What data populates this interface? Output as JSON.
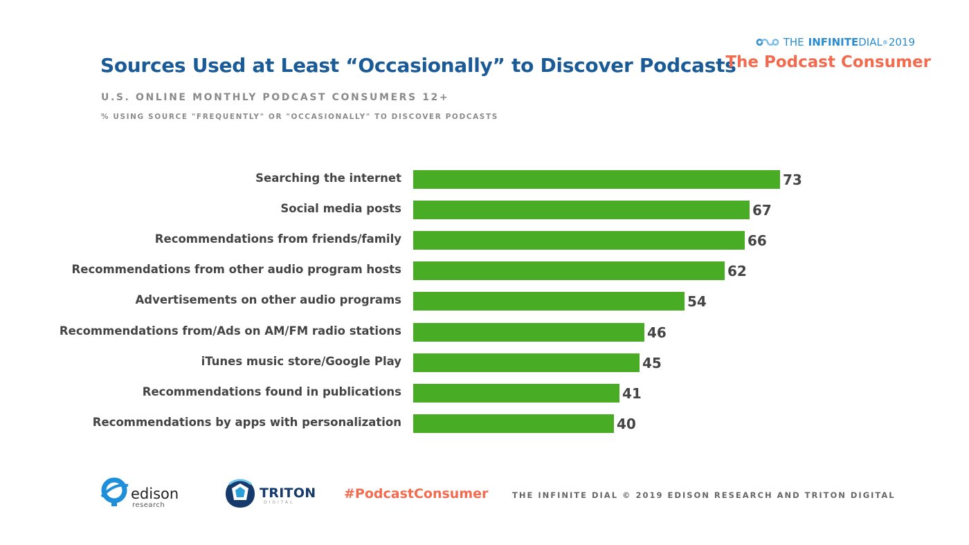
{
  "header": {
    "title": "Sources Used at Least “Occasionally” to Discover Podcasts",
    "subtitle": "U.S. ONLINE MONTHLY PODCAST CONSUMERS 12+",
    "note": "% USING SOURCE \"FREQUENTLY\" OR \"OCCASIONALLY\" TO DISCOVER PODCASTS"
  },
  "brand": {
    "prefix": "THE ",
    "name_bold": "INFINITE",
    "name_rest": " DIAL",
    "reg": "®",
    "year": "2019",
    "subtitle": "The Podcast Consumer",
    "infinity_icon": "infinity-icon"
  },
  "chart_data": {
    "type": "bar",
    "orientation": "horizontal",
    "categories": [
      "Searching the internet",
      "Social media posts",
      "Recommendations from friends/family",
      "Recommendations from other audio program hosts",
      "Advertisements on other audio programs",
      "Recommendations from/Ads on AM/FM radio stations",
      "iTunes music store/Google Play",
      "Recommendations found in publications",
      "Recommendations by apps with personalization"
    ],
    "values": [
      73,
      67,
      66,
      62,
      54,
      46,
      45,
      41,
      40
    ],
    "title": "Sources Used at Least “Occasionally” to Discover Podcasts",
    "xlim": [
      0,
      73
    ],
    "color": "#48ad25",
    "grid": false,
    "data_labels": true
  },
  "footer": {
    "edison_word": "edison",
    "edison_sub": "research",
    "triton_word": "TRITON",
    "triton_sub": "DIGITAL",
    "hashtag": "#PodcastConsumer",
    "credit": "THE INFINITE DIAL   © 2019 EDISON RESEARCH AND TRITON DIGITAL"
  },
  "colors": {
    "title": "#1a5a96",
    "accent": "#f26b4f",
    "bar": "#48ad25",
    "brand": "#2a8ccf"
  }
}
